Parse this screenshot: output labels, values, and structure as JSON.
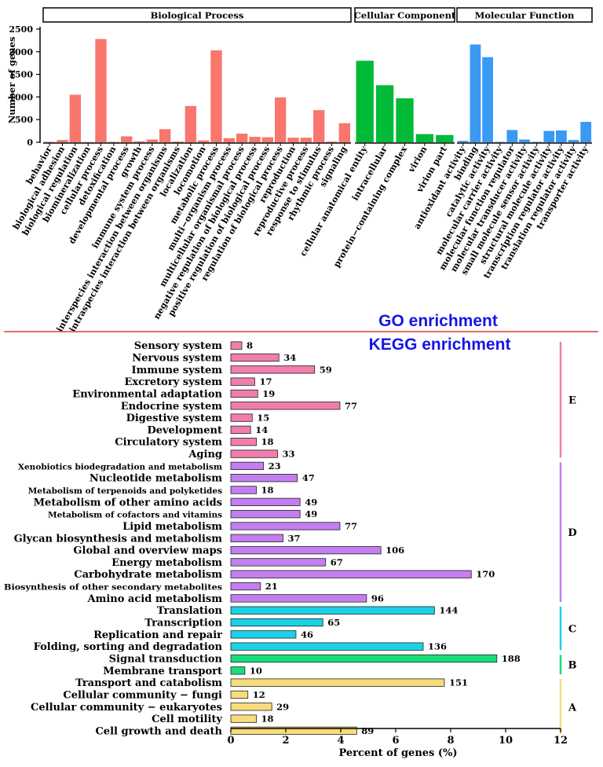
{
  "chart_data": [
    {
      "type": "bar",
      "title": "GO enrichment",
      "ylabel": "Number of genes",
      "ylim": [
        0,
        2500
      ],
      "yticks": [
        0,
        500,
        1000,
        1500,
        2000,
        2500
      ],
      "panels": [
        {
          "name": "Biological Process",
          "color": "#f8766d",
          "categories": [
            "behavior",
            "biological adhesion",
            "biological regulation",
            "biomineralization",
            "cellular process",
            "detoxification",
            "developmental process",
            "growth",
            "immune system process",
            "interspecies interaction between organisms",
            "intraspecies interaction between organisms",
            "localization",
            "locomotion",
            "metabolic process",
            "multi−organism process",
            "multicellular organismal process",
            "negative regulation of biological process",
            "positive regulation of biological process",
            "regulation of biological process",
            "reproduction",
            "reproductive process",
            "response to stimulus",
            "rhythmic process",
            "signaling"
          ],
          "values": [
            10,
            50,
            1050,
            5,
            2280,
            10,
            130,
            20,
            60,
            290,
            15,
            800,
            40,
            2030,
            90,
            190,
            120,
            110,
            990,
            100,
            100,
            710,
            15,
            420
          ]
        },
        {
          "name": "Cellular Component",
          "color": "#00ba38",
          "categories": [
            "cellular anatomical entity",
            "intracellular",
            "protein−containing complex",
            "virion",
            "virion part"
          ],
          "values": [
            1800,
            1260,
            970,
            180,
            160
          ]
        },
        {
          "name": "Molecular Function",
          "color": "#3999f3",
          "categories": [
            "antioxidant activity",
            "binding",
            "catalytic activity",
            "molecular carrier activity",
            "molecular function regulator",
            "molecular transducer activity",
            "small molecule sensor activity",
            "structural molecule activity",
            "transcription regulator activity",
            "translation regulator activity",
            "transporter activity"
          ],
          "values": [
            30,
            2160,
            1880,
            10,
            270,
            60,
            10,
            250,
            260,
            50,
            450
          ]
        }
      ]
    },
    {
      "type": "bar",
      "orientation": "horizontal",
      "title": "KEGG enrichment",
      "xlabel": "Percent of genes (%)",
      "xlim": [
        0,
        12
      ],
      "xticks": [
        0,
        2,
        4,
        6,
        8,
        10,
        12
      ],
      "groups": [
        {
          "label": "E",
          "color": "#f07eac",
          "items": [
            {
              "name": "Sensory system",
              "percent": 0.4,
              "count": "8"
            },
            {
              "name": "Nervous system",
              "percent": 1.75,
              "count": "34"
            },
            {
              "name": "Immune system",
              "percent": 3.05,
              "count": "59"
            },
            {
              "name": "Excretory system",
              "percent": 0.87,
              "count": "17"
            },
            {
              "name": "Environmental adaptation",
              "percent": 0.98,
              "count": "19"
            },
            {
              "name": "Endocrine system",
              "percent": 3.97,
              "count": "77"
            },
            {
              "name": "Digestive system",
              "percent": 0.78,
              "count": "15"
            },
            {
              "name": "Development",
              "percent": 0.72,
              "count": "14"
            },
            {
              "name": "Circulatory system",
              "percent": 0.93,
              "count": "18"
            },
            {
              "name": "Aging",
              "percent": 1.7,
              "count": "33"
            }
          ]
        },
        {
          "label": "D",
          "color": "#c37ef0",
          "items": [
            {
              "name": "Xenobiotics biodegradation and metabolism",
              "percent": 1.19,
              "count": "23"
            },
            {
              "name": "Nucleotide metabolism",
              "percent": 2.42,
              "count": "47"
            },
            {
              "name": "Metabolism of terpenoids and polyketides",
              "percent": 0.93,
              "count": "18"
            },
            {
              "name": "Metabolism of other amino acids",
              "percent": 2.52,
              "count": "49"
            },
            {
              "name": "Metabolism of cofactors and vitamins",
              "percent": 2.52,
              "count": "49"
            },
            {
              "name": "Lipid metabolism",
              "percent": 3.97,
              "count": "77"
            },
            {
              "name": "Glycan biosynthesis and metabolism",
              "percent": 1.9,
              "count": "37"
            },
            {
              "name": "Global and overview maps",
              "percent": 5.46,
              "count": "106"
            },
            {
              "name": "Energy metabolism",
              "percent": 3.45,
              "count": "67"
            },
            {
              "name": "Carbohydrate metabolism",
              "percent": 8.75,
              "count": "170"
            },
            {
              "name": "Biosynthesis of other secondary metabolites",
              "percent": 1.08,
              "count": "21"
            },
            {
              "name": "Amino acid metabolism",
              "percent": 4.94,
              "count": "96"
            }
          ]
        },
        {
          "label": "C",
          "color": "#19d2e8",
          "items": [
            {
              "name": "Translation",
              "percent": 7.41,
              "count": "144"
            },
            {
              "name": "Transcription",
              "percent": 3.35,
              "count": "65"
            },
            {
              "name": "Replication and repair",
              "percent": 2.37,
              "count": "46"
            },
            {
              "name": "Folding, sorting and degradation",
              "percent": 7.0,
              "count": "136"
            }
          ]
        },
        {
          "label": "B",
          "color": "#19dc7c",
          "items": [
            {
              "name": "Signal transduction",
              "percent": 9.68,
              "count": "188"
            },
            {
              "name": "Membrane transport",
              "percent": 0.51,
              "count": "10"
            }
          ]
        },
        {
          "label": "A",
          "color": "#f7dc7c",
          "items": [
            {
              "name": "Transport and catabolism",
              "percent": 7.77,
              "count": "151"
            },
            {
              "name": "Cellular community − fungi",
              "percent": 0.62,
              "count": "12"
            },
            {
              "name": "Cellular community − eukaryotes",
              "percent": 1.49,
              "count": "29"
            },
            {
              "name": "Cell motility",
              "percent": 0.93,
              "count": "18"
            },
            {
              "name": "Cell growth and death",
              "percent": 4.58,
              "count": "89"
            }
          ]
        }
      ]
    }
  ],
  "colors": {
    "divider": "#e23b3b",
    "heading": "#1515e8"
  }
}
